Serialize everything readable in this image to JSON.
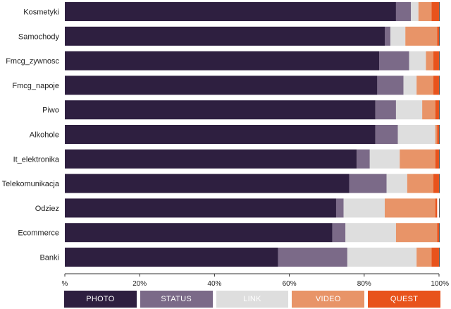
{
  "chart_data": {
    "type": "bar",
    "orientation": "horizontal",
    "stacked": true,
    "normalized": true,
    "categories": [
      "Kosmetyki",
      "Samochody",
      "Fmcg_zywnosc",
      "Fmcg_napoje",
      "Piwo",
      "Alkohole",
      "It_elektronika",
      "Telekomunikacja",
      "Odziez",
      "Ecommerce",
      "Banki"
    ],
    "series": [
      {
        "name": "PHOTO",
        "color": "#2e1f40",
        "values": [
          88.5,
          85.5,
          84.0,
          83.5,
          83.0,
          83.0,
          78.0,
          76.0,
          72.5,
          71.5,
          57.0
        ]
      },
      {
        "name": "STATUS",
        "color": "#7b6a88",
        "values": [
          4.0,
          1.5,
          8.0,
          7.0,
          5.5,
          6.0,
          3.5,
          10.0,
          2.0,
          3.5,
          18.5
        ]
      },
      {
        "name": "LINK",
        "color": "#dedede",
        "values": [
          2.0,
          4.0,
          4.5,
          3.5,
          7.0,
          10.0,
          8.0,
          5.5,
          11.0,
          13.5,
          18.5
        ]
      },
      {
        "name": "VIDEO",
        "color": "#e89468",
        "values": [
          3.5,
          8.5,
          2.0,
          4.5,
          3.5,
          0.5,
          9.5,
          7.0,
          13.5,
          11.0,
          4.0
        ]
      },
      {
        "name": "QUEST",
        "color": "#e8531c",
        "values": [
          2.0,
          0.5,
          1.5,
          1.5,
          1.0,
          0.5,
          1.0,
          1.5,
          0.5,
          0.5,
          2.0
        ]
      }
    ],
    "xlim": [
      0,
      100
    ],
    "x_ticks": [
      "%",
      "20%",
      "40%",
      "60%",
      "80%",
      "100%"
    ],
    "x_tick_values": [
      0,
      20,
      40,
      60,
      80,
      100
    ],
    "grid": false,
    "legend_position": "bottom"
  }
}
